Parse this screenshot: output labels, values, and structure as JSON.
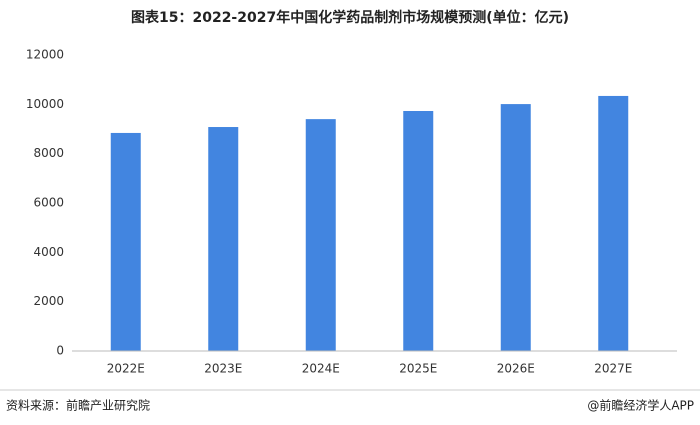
{
  "chart_data": {
    "type": "bar",
    "title": "图表15：2022-2027年中国化学药品制剂市场规模预测(单位：亿元)",
    "categories": [
      "2022E",
      "2023E",
      "2024E",
      "2025E",
      "2026E",
      "2027E"
    ],
    "values": [
      8840,
      9080,
      9400,
      9730,
      10010,
      10340
    ],
    "color": "#4285e0",
    "ylim": [
      0,
      12000
    ],
    "yticks": [
      0,
      2000,
      4000,
      6000,
      8000,
      10000,
      12000
    ],
    "grid": false,
    "source": "资料来源：前瞻产业研究院",
    "credit": "@前瞻经济学人APP"
  }
}
